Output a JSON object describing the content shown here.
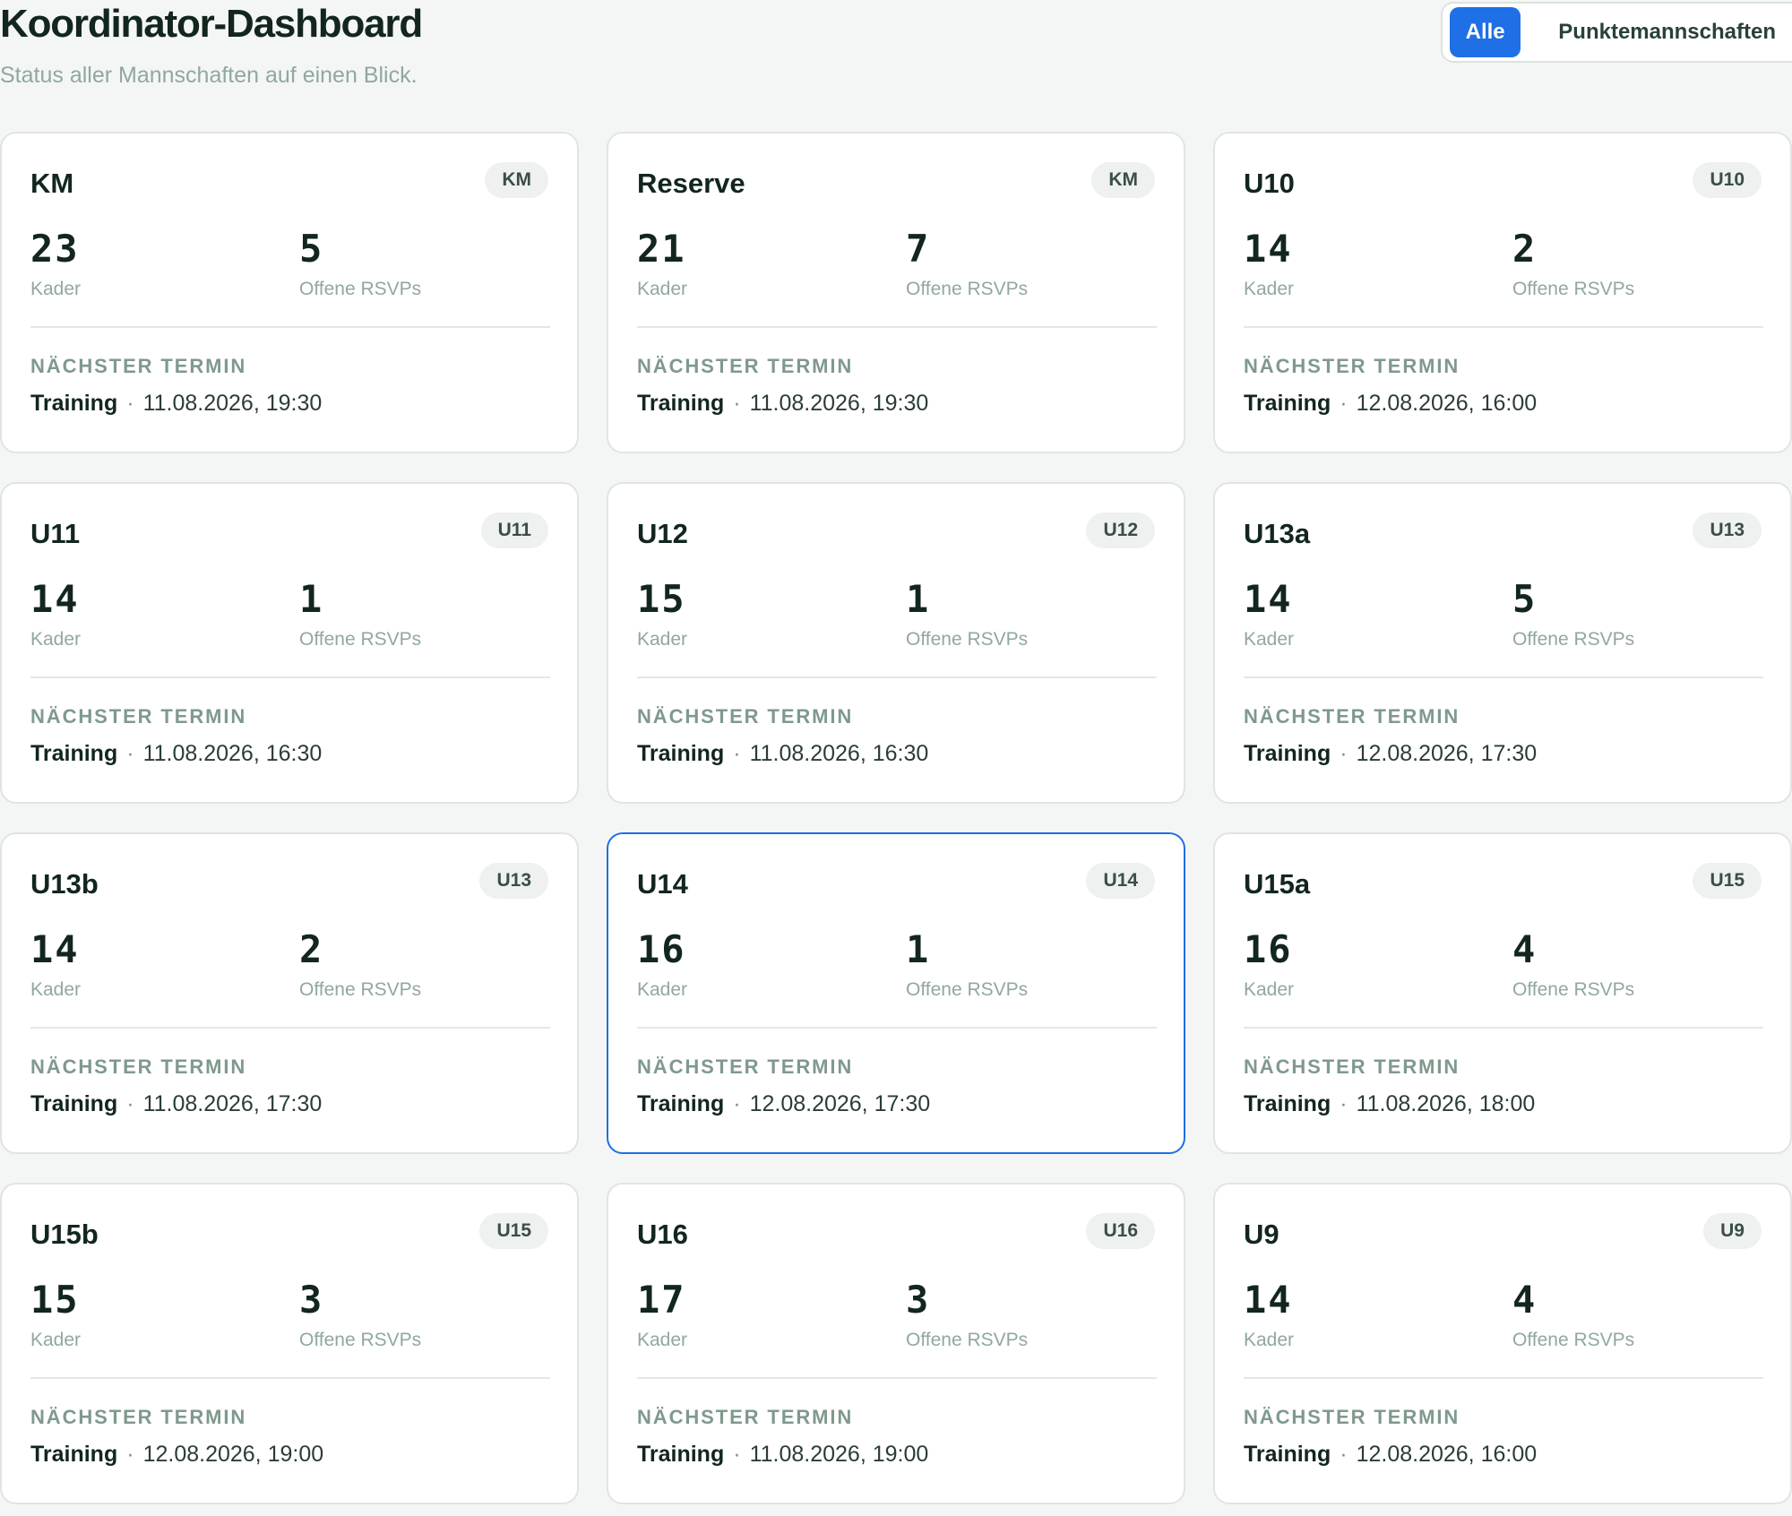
{
  "header": {
    "title": "Koordinator-Dashboard",
    "subtitle": "Status aller Mannschaften auf einen Blick."
  },
  "filter": {
    "options": [
      "Alle",
      "Punktemannschaften"
    ],
    "selected": "Alle"
  },
  "labels": {
    "kader": "Kader",
    "rsvps": "Offene RSVPs",
    "next_event": "NÄCHSTER TERMIN",
    "separator": "·"
  },
  "teams": [
    {
      "name": "KM",
      "badge": "KM",
      "kader": "23",
      "open_rsvps": "5",
      "event_type": "Training",
      "event_datetime": "11.08.2026, 19:30",
      "selected": false
    },
    {
      "name": "Reserve",
      "badge": "KM",
      "kader": "21",
      "open_rsvps": "7",
      "event_type": "Training",
      "event_datetime": "11.08.2026, 19:30",
      "selected": false
    },
    {
      "name": "U10",
      "badge": "U10",
      "kader": "14",
      "open_rsvps": "2",
      "event_type": "Training",
      "event_datetime": "12.08.2026, 16:00",
      "selected": false
    },
    {
      "name": "U11",
      "badge": "U11",
      "kader": "14",
      "open_rsvps": "1",
      "event_type": "Training",
      "event_datetime": "11.08.2026, 16:30",
      "selected": false
    },
    {
      "name": "U12",
      "badge": "U12",
      "kader": "15",
      "open_rsvps": "1",
      "event_type": "Training",
      "event_datetime": "11.08.2026, 16:30",
      "selected": false
    },
    {
      "name": "U13a",
      "badge": "U13",
      "kader": "14",
      "open_rsvps": "5",
      "event_type": "Training",
      "event_datetime": "12.08.2026, 17:30",
      "selected": false
    },
    {
      "name": "U13b",
      "badge": "U13",
      "kader": "14",
      "open_rsvps": "2",
      "event_type": "Training",
      "event_datetime": "11.08.2026, 17:30",
      "selected": false
    },
    {
      "name": "U14",
      "badge": "U14",
      "kader": "16",
      "open_rsvps": "1",
      "event_type": "Training",
      "event_datetime": "12.08.2026, 17:30",
      "selected": true
    },
    {
      "name": "U15a",
      "badge": "U15",
      "kader": "16",
      "open_rsvps": "4",
      "event_type": "Training",
      "event_datetime": "11.08.2026, 18:00",
      "selected": false
    },
    {
      "name": "U15b",
      "badge": "U15",
      "kader": "15",
      "open_rsvps": "3",
      "event_type": "Training",
      "event_datetime": "12.08.2026, 19:00",
      "selected": false
    },
    {
      "name": "U16",
      "badge": "U16",
      "kader": "17",
      "open_rsvps": "3",
      "event_type": "Training",
      "event_datetime": "11.08.2026, 19:00",
      "selected": false
    },
    {
      "name": "U9",
      "badge": "U9",
      "kader": "14",
      "open_rsvps": "4",
      "event_type": "Training",
      "event_datetime": "12.08.2026, 16:00",
      "selected": false
    }
  ]
}
